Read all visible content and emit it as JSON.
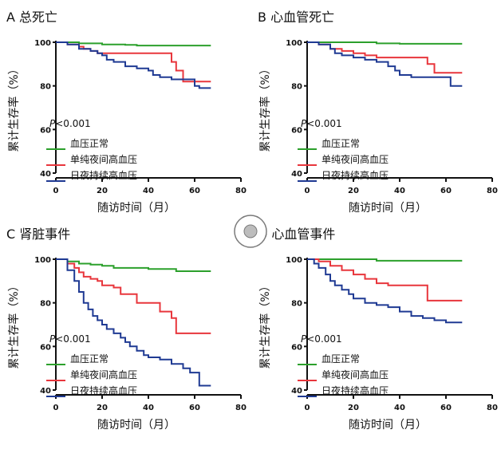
{
  "chart_data": [
    {
      "type": "line",
      "step": true,
      "panel_letter": "A",
      "title": "总死亡",
      "xlabel": "随访时间（月）",
      "ylabel": "累计生存率（%）",
      "xlim": [
        0,
        80
      ],
      "ylim": [
        40,
        100
      ],
      "xticks": [
        "0",
        "20",
        "40",
        "60",
        "80"
      ],
      "yticks": [
        "40",
        "60",
        "80",
        "100"
      ],
      "annotation": {
        "italic": "P",
        "rest": "<0.001"
      },
      "series": [
        {
          "name": "血压正常",
          "color": "#2ca02c",
          "x": [
            0,
            10,
            20,
            30,
            35,
            50,
            67
          ],
          "y": [
            100,
            99.5,
            99,
            98.8,
            98.5,
            98.5,
            98.5
          ]
        },
        {
          "name": "单纯夜间高血压",
          "color": "#e8363c",
          "x": [
            0,
            5,
            10,
            12,
            15,
            18,
            48,
            50,
            52,
            55,
            67
          ],
          "y": [
            100,
            99,
            98,
            97,
            96,
            95,
            95,
            91,
            87,
            82,
            82
          ]
        },
        {
          "name": "日夜持续高血压",
          "color": "#1f3a93",
          "x": [
            0,
            5,
            10,
            15,
            18,
            20,
            22,
            25,
            30,
            35,
            40,
            42,
            45,
            50,
            55,
            60,
            62,
            67
          ],
          "y": [
            100,
            99,
            97,
            96,
            95,
            94,
            92,
            91,
            89,
            88,
            87,
            85,
            84,
            83,
            83,
            80,
            79,
            79
          ]
        }
      ]
    },
    {
      "type": "line",
      "step": true,
      "panel_letter": "B",
      "title": "心血管死亡",
      "xlabel": "随访时间（月）",
      "ylabel": "累计生存率（%）",
      "xlim": [
        0,
        80
      ],
      "ylim": [
        40,
        100
      ],
      "xticks": [
        "0",
        "20",
        "40",
        "60",
        "80"
      ],
      "yticks": [
        "40",
        "60",
        "80",
        "100"
      ],
      "annotation": {
        "italic": "P",
        "rest": "<0.001"
      },
      "series": [
        {
          "name": "血压正常",
          "color": "#2ca02c",
          "x": [
            0,
            20,
            30,
            40,
            67
          ],
          "y": [
            100,
            100,
            99.5,
            99.3,
            99.3
          ]
        },
        {
          "name": "单纯夜间高血压",
          "color": "#e8363c",
          "x": [
            0,
            5,
            10,
            15,
            20,
            25,
            30,
            50,
            52,
            55,
            67
          ],
          "y": [
            100,
            99,
            97,
            96,
            95,
            94,
            93,
            93,
            90,
            86,
            86
          ]
        },
        {
          "name": "日夜持续高血压",
          "color": "#1f3a93",
          "x": [
            0,
            5,
            10,
            12,
            15,
            20,
            25,
            30,
            35,
            38,
            40,
            45,
            55,
            60,
            62,
            67
          ],
          "y": [
            100,
            99,
            97,
            95,
            94,
            93,
            92,
            91,
            89,
            87,
            85,
            84,
            84,
            84,
            80,
            80
          ]
        }
      ]
    },
    {
      "type": "line",
      "step": true,
      "panel_letter": "C",
      "title": "肾脏事件",
      "xlabel": "随访时间（月）",
      "ylabel": "累计生存率（%）",
      "xlim": [
        0,
        80
      ],
      "ylim": [
        40,
        100
      ],
      "xticks": [
        "0",
        "20",
        "40",
        "60",
        "80"
      ],
      "yticks": [
        "40",
        "60",
        "80",
        "100"
      ],
      "annotation": {
        "italic": "P",
        "rest": "<0.001"
      },
      "series": [
        {
          "name": "血压正常",
          "color": "#2ca02c",
          "x": [
            0,
            5,
            10,
            15,
            20,
            25,
            30,
            40,
            48,
            52,
            67
          ],
          "y": [
            100,
            99,
            98,
            97.5,
            97,
            96,
            96,
            95.5,
            95.5,
            94.5,
            94.5
          ]
        },
        {
          "name": "单纯夜间高血压",
          "color": "#e8363c",
          "x": [
            0,
            5,
            8,
            10,
            12,
            15,
            18,
            20,
            25,
            28,
            35,
            43,
            45,
            50,
            52,
            67
          ],
          "y": [
            100,
            98,
            96,
            94,
            92,
            91,
            90,
            88,
            87,
            84,
            80,
            80,
            76,
            73,
            66,
            66
          ]
        },
        {
          "name": "日夜持续高血压",
          "color": "#1f3a93",
          "x": [
            0,
            5,
            8,
            10,
            12,
            14,
            16,
            18,
            20,
            22,
            25,
            28,
            30,
            32,
            35,
            38,
            40,
            45,
            50,
            55,
            58,
            62,
            67
          ],
          "y": [
            100,
            95,
            90,
            85,
            80,
            77,
            74,
            72,
            70,
            68,
            66,
            64,
            62,
            60,
            58,
            56,
            55,
            54,
            52,
            50,
            48,
            42,
            42
          ]
        }
      ]
    },
    {
      "type": "line",
      "step": true,
      "panel_letter": "D",
      "title": "心血管事件",
      "xlabel": "随访时间（月）",
      "ylabel": "累计生存率（%）",
      "xlim": [
        0,
        80
      ],
      "ylim": [
        40,
        100
      ],
      "xticks": [
        "0",
        "20",
        "40",
        "60",
        "80"
      ],
      "yticks": [
        "40",
        "60",
        "80",
        "100"
      ],
      "annotation": {
        "italic": "P",
        "rest": "<0.001"
      },
      "series": [
        {
          "name": "血压正常",
          "color": "#2ca02c",
          "x": [
            0,
            30,
            67
          ],
          "y": [
            100,
            99.3,
            99.3
          ]
        },
        {
          "name": "单纯夜间高血压",
          "color": "#e8363c",
          "x": [
            0,
            5,
            10,
            15,
            20,
            25,
            30,
            35,
            50,
            52,
            67
          ],
          "y": [
            100,
            99,
            97,
            95,
            93,
            91,
            89,
            88,
            88,
            81,
            81
          ]
        },
        {
          "name": "日夜持续高血压",
          "color": "#1f3a93",
          "x": [
            0,
            3,
            5,
            8,
            10,
            12,
            15,
            18,
            20,
            25,
            30,
            35,
            40,
            45,
            50,
            55,
            60,
            67
          ],
          "y": [
            100,
            98,
            96,
            93,
            90,
            88,
            86,
            84,
            82,
            80,
            79,
            78,
            76,
            74,
            73,
            72,
            71,
            71
          ]
        }
      ]
    }
  ]
}
